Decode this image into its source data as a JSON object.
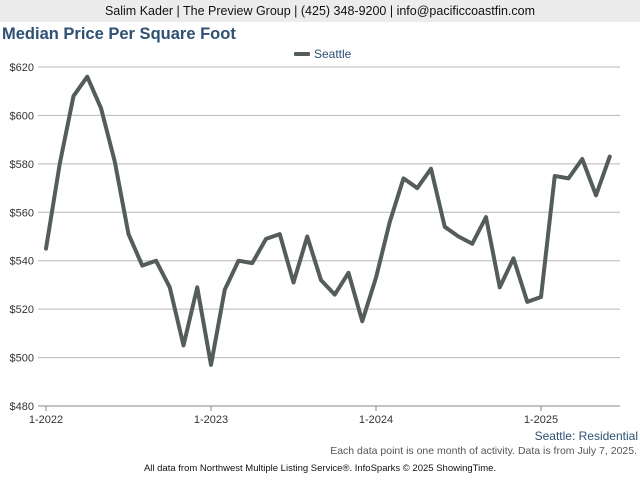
{
  "header": {
    "contact": "Salim Kader | The Preview Group | (425) 348-9200 | info@pacificcoastfin.com"
  },
  "colors": {
    "series": "#555c5c",
    "title": "#2e5073",
    "grid": "#b8b8b8"
  },
  "chart_data": {
    "type": "line",
    "title": "Median Price Per Square Foot",
    "xlabel": "",
    "ylabel": "",
    "ylim": [
      480,
      620
    ],
    "yticks": [
      480,
      500,
      520,
      540,
      560,
      580,
      600,
      620
    ],
    "ytick_labels": [
      "$480",
      "$500",
      "$520",
      "$540",
      "$560",
      "$580",
      "$600",
      "$620"
    ],
    "xticks": [
      {
        "index": 0,
        "label": "1-2022"
      },
      {
        "index": 12,
        "label": "1-2023"
      },
      {
        "index": 24,
        "label": "1-2024"
      },
      {
        "index": 36,
        "label": "1-2025"
      }
    ],
    "grid": true,
    "legend_position": "top-center",
    "series": [
      {
        "name": "Seattle",
        "x": [
          "1-2022",
          "2-2022",
          "3-2022",
          "4-2022",
          "5-2022",
          "6-2022",
          "7-2022",
          "8-2022",
          "9-2022",
          "10-2022",
          "11-2022",
          "12-2022",
          "1-2023",
          "2-2023",
          "3-2023",
          "4-2023",
          "5-2023",
          "6-2023",
          "7-2023",
          "8-2023",
          "9-2023",
          "10-2023",
          "11-2023",
          "12-2023",
          "1-2024",
          "2-2024",
          "3-2024",
          "4-2024",
          "5-2024",
          "6-2024",
          "7-2024",
          "8-2024",
          "9-2024",
          "10-2024",
          "11-2024",
          "12-2024",
          "1-2025",
          "2-2025",
          "3-2025",
          "4-2025",
          "5-2025",
          "6-2025"
        ],
        "values": [
          545,
          580,
          608,
          616,
          603,
          581,
          551,
          538,
          540,
          529,
          505,
          529,
          497,
          528,
          540,
          539,
          549,
          551,
          531,
          550,
          532,
          526,
          535,
          515,
          533,
          556,
          574,
          570,
          578,
          554,
          550,
          547,
          558,
          529,
          541,
          523,
          525,
          575,
          574,
          582,
          567,
          583
        ]
      }
    ],
    "series_caption": "Seattle: Residential",
    "note": "Each data point is one month of activity. Data is from July 7, 2025.",
    "source": "All data from Northwest Multiple Listing Service®. InfoSparks © 2025 ShowingTime."
  }
}
